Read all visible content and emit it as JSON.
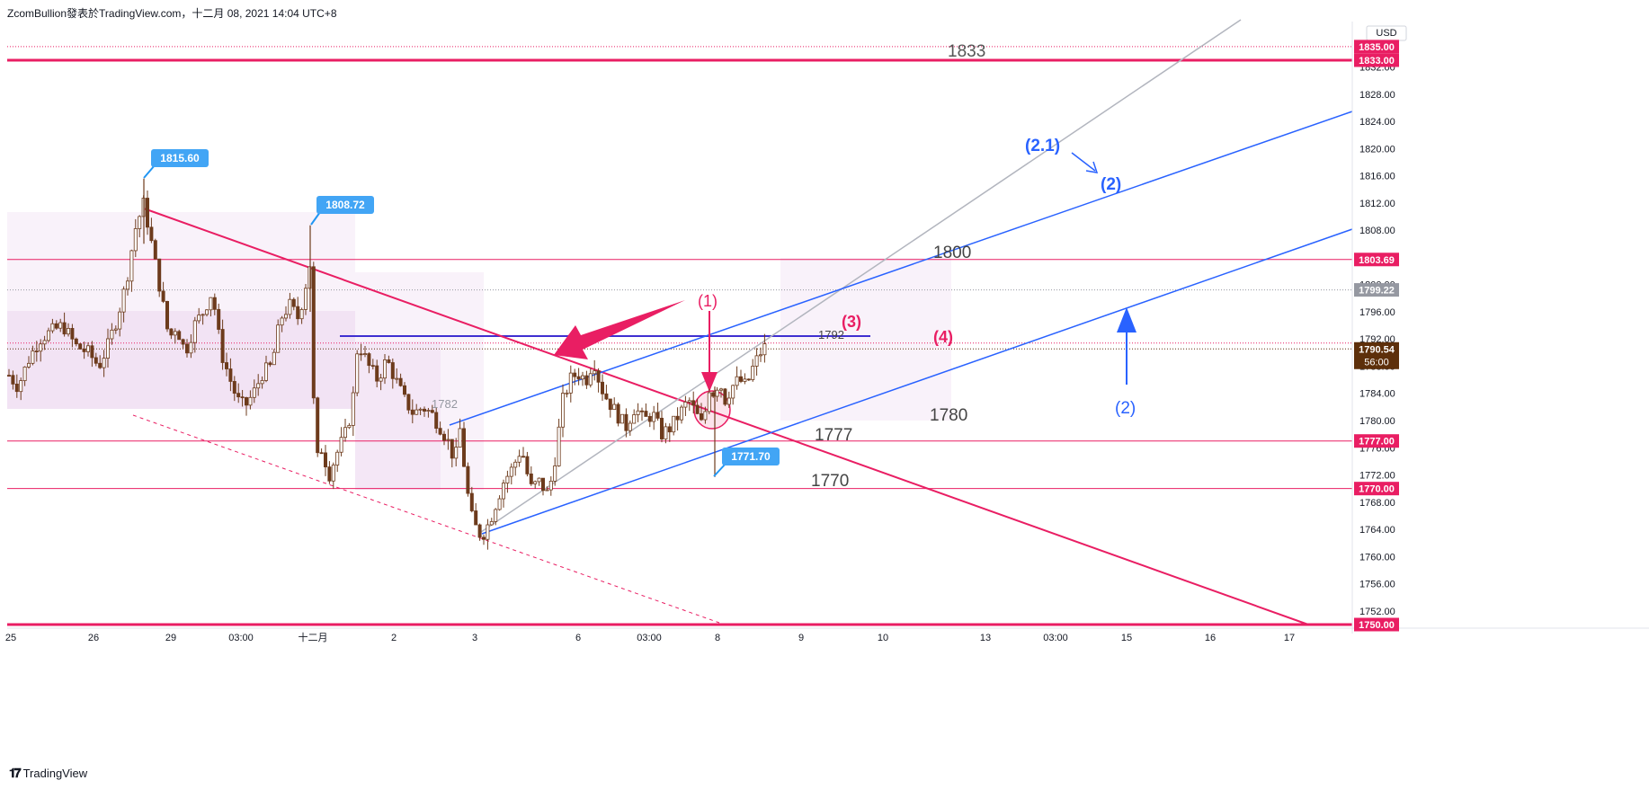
{
  "header": {
    "text": "ZcomBullion發表於TradingView.com，十二月 08, 2021 14:04 UTC+8"
  },
  "brand": {
    "name": "TradingView"
  },
  "axis": {
    "currency": "USD"
  },
  "chart_data": {
    "type": "candlestick",
    "symbol_currency": "USD",
    "ylim": [
      1748,
      1838
    ],
    "y_ticks": [
      1752,
      1756,
      1760,
      1764,
      1768,
      1772,
      1776,
      1780,
      1784,
      1788,
      1792,
      1796,
      1800,
      1804,
      1808,
      1812,
      1816,
      1820,
      1824,
      1828,
      1832
    ],
    "x_ticks": [
      "25",
      "26",
      "29",
      "03:00",
      "十二月",
      "2",
      "3",
      "6",
      "03:00",
      "8",
      "9",
      "10",
      "13",
      "03:00",
      "15",
      "16",
      "17"
    ],
    "price_labels": [
      {
        "text": "1835.00",
        "value": 1835.0,
        "color": "#e91e63"
      },
      {
        "text": "1833.00",
        "value": 1833.0,
        "color": "#e91e63"
      },
      {
        "text": "1803.69",
        "value": 1803.69,
        "color": "#e91e63"
      },
      {
        "text": "1799.22",
        "value": 1799.22,
        "color": "#9598a1"
      },
      {
        "text": "1790.54",
        "value": 1790.54,
        "color": "#5d2f0a",
        "sub": "56:00"
      },
      {
        "text": "1777.00",
        "value": 1777.0,
        "color": "#e91e63"
      },
      {
        "text": "1770.00",
        "value": 1770.0,
        "color": "#e91e63"
      },
      {
        "text": "1750.00",
        "value": 1750.0,
        "color": "#e91e63"
      }
    ],
    "callouts": [
      {
        "text": "1815.60",
        "value": 1815.6
      },
      {
        "text": "1808.72",
        "value": 1808.72
      },
      {
        "text": "1771.70",
        "value": 1771.7
      }
    ],
    "level_text": [
      {
        "text": "1833",
        "color": "#555555"
      },
      {
        "text": "1800",
        "color": "#444444"
      },
      {
        "text": "1792",
        "color": "#444444"
      },
      {
        "text": "1782",
        "color": "#9598a1"
      },
      {
        "text": "1780",
        "color": "#444444"
      },
      {
        "text": "1777",
        "color": "#444444"
      },
      {
        "text": "1770",
        "color": "#444444"
      }
    ],
    "annotations": [
      {
        "text": "(1)",
        "color": "#e91e63"
      },
      {
        "text": "(3)",
        "color": "#e91e63"
      },
      {
        "text": "(4)",
        "color": "#e91e63"
      },
      {
        "text": "(2.1)",
        "color": "#2962ff"
      },
      {
        "text": "(2)",
        "color": "#2962ff"
      },
      {
        "text": "(2)",
        "color": "#2962ff"
      }
    ],
    "candle_path": [
      [
        0,
        1784
      ],
      [
        8,
        1787
      ],
      [
        20,
        1785
      ],
      [
        32,
        1789
      ],
      [
        44,
        1792
      ],
      [
        56,
        1793
      ],
      [
        70,
        1794
      ],
      [
        84,
        1791
      ],
      [
        98,
        1790
      ],
      [
        110,
        1788
      ],
      [
        120,
        1791
      ],
      [
        130,
        1795
      ],
      [
        140,
        1800
      ],
      [
        150,
        1808
      ],
      [
        160,
        1812
      ],
      [
        170,
        1805
      ],
      [
        180,
        1798
      ],
      [
        188,
        1792
      ],
      [
        196,
        1794
      ],
      [
        206,
        1790
      ],
      [
        216,
        1794
      ],
      [
        226,
        1796
      ],
      [
        236,
        1799
      ],
      [
        246,
        1790
      ],
      [
        256,
        1786
      ],
      [
        264,
        1783
      ],
      [
        272,
        1782
      ],
      [
        282,
        1784
      ],
      [
        292,
        1787
      ],
      [
        302,
        1788
      ],
      [
        312,
        1795
      ],
      [
        322,
        1797
      ],
      [
        332,
        1795
      ],
      [
        340,
        1800
      ],
      [
        344,
        1805
      ],
      [
        348,
        1785
      ],
      [
        352,
        1774
      ],
      [
        358,
        1776
      ],
      [
        366,
        1772
      ],
      [
        374,
        1775
      ],
      [
        384,
        1778
      ],
      [
        392,
        1782
      ],
      [
        396,
        1790
      ],
      [
        400,
        1791
      ],
      [
        410,
        1788
      ],
      [
        420,
        1786
      ],
      [
        430,
        1789
      ],
      [
        440,
        1786
      ],
      [
        450,
        1783
      ],
      [
        460,
        1781
      ],
      [
        470,
        1782
      ],
      [
        480,
        1781
      ],
      [
        490,
        1779
      ],
      [
        498,
        1777
      ],
      [
        506,
        1774
      ],
      [
        512,
        1779
      ],
      [
        518,
        1771
      ],
      [
        524,
        1766
      ],
      [
        530,
        1764
      ],
      [
        536,
        1763
      ],
      [
        544,
        1765
      ],
      [
        552,
        1768
      ],
      [
        560,
        1771
      ],
      [
        570,
        1773
      ],
      [
        580,
        1776
      ],
      [
        590,
        1770
      ],
      [
        600,
        1771
      ],
      [
        610,
        1769
      ],
      [
        618,
        1775
      ],
      [
        626,
        1783
      ],
      [
        634,
        1786
      ],
      [
        642,
        1787
      ],
      [
        652,
        1786
      ],
      [
        660,
        1789
      ],
      [
        668,
        1785
      ],
      [
        676,
        1783
      ],
      [
        686,
        1781
      ],
      [
        696,
        1779
      ],
      [
        706,
        1782
      ],
      [
        716,
        1780
      ],
      [
        726,
        1781
      ],
      [
        736,
        1778
      ],
      [
        746,
        1779
      ],
      [
        756,
        1781
      ],
      [
        766,
        1783
      ],
      [
        774,
        1781
      ],
      [
        782,
        1779
      ],
      [
        788,
        1785
      ],
      [
        794,
        1784
      ],
      [
        800,
        1786
      ],
      [
        806,
        1783
      ],
      [
        814,
        1785
      ],
      [
        822,
        1786
      ],
      [
        830,
        1785
      ],
      [
        838,
        1788
      ],
      [
        846,
        1790
      ],
      [
        852,
        1791
      ]
    ]
  }
}
